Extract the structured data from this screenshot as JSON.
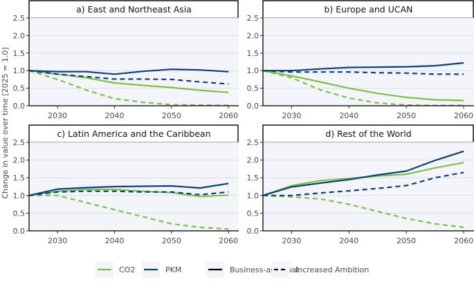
{
  "colors": {
    "co2": "#7cc142",
    "pkm": "#0b3f7f",
    "plot_bg": "#f3f5fa",
    "grid": "#dcdde3",
    "axis": "#222222",
    "text": "#444b55"
  },
  "chart_data": {
    "type": "line",
    "ylabel": "Change in value over time [2025 = 1.0]",
    "xlim": [
      2025,
      2061.8
    ],
    "ylim": [
      0,
      2.5
    ],
    "xticks": [
      2030,
      2040,
      2050,
      2060
    ],
    "yticks": [
      "0.0",
      "0.5",
      "1.0",
      "1.5",
      "2.0",
      "2.5"
    ],
    "grid": true,
    "legend": {
      "placement": "bottom",
      "entries": [
        {
          "label": "CO2",
          "color": "#7cc142",
          "style": "solid"
        },
        {
          "label": "PKM",
          "color": "#0b3f7f",
          "style": "solid"
        },
        {
          "label": "Business-as-Usual",
          "color": "#000000",
          "style": "solid"
        },
        {
          "label": "Increased Ambition",
          "color": "#000000",
          "style": "dashed"
        }
      ]
    },
    "x": [
      2025,
      2030,
      2035,
      2040,
      2045,
      2050,
      2055,
      2060
    ],
    "panels": [
      {
        "title": "a) East and Northeast Asia",
        "series": [
          {
            "metric": "CO2",
            "scenario": "Business-as-Usual",
            "values": [
              1.0,
              0.9,
              0.8,
              0.65,
              0.58,
              0.52,
              0.44,
              0.38
            ]
          },
          {
            "metric": "PKM",
            "scenario": "Business-as-Usual",
            "values": [
              1.0,
              0.97,
              0.97,
              0.9,
              0.98,
              1.04,
              1.02,
              0.97
            ]
          },
          {
            "metric": "CO2",
            "scenario": "Increased Ambition",
            "values": [
              1.0,
              0.75,
              0.45,
              0.2,
              0.1,
              0.03,
              0.02,
              0.01
            ]
          },
          {
            "metric": "PKM",
            "scenario": "Increased Ambition",
            "values": [
              1.0,
              0.9,
              0.83,
              0.76,
              0.76,
              0.75,
              0.68,
              0.62
            ]
          }
        ]
      },
      {
        "title": "b) Europe and UCAN",
        "series": [
          {
            "metric": "CO2",
            "scenario": "Business-as-Usual",
            "values": [
              1.0,
              0.85,
              0.68,
              0.5,
              0.35,
              0.24,
              0.17,
              0.15
            ]
          },
          {
            "metric": "PKM",
            "scenario": "Business-as-Usual",
            "values": [
              1.0,
              1.0,
              1.05,
              1.09,
              1.1,
              1.11,
              1.14,
              1.22
            ]
          },
          {
            "metric": "CO2",
            "scenario": "Increased Ambition",
            "values": [
              1.0,
              0.8,
              0.45,
              0.22,
              0.08,
              0.02,
              0.01,
              0.01
            ]
          },
          {
            "metric": "PKM",
            "scenario": "Increased Ambition",
            "values": [
              1.0,
              0.96,
              0.96,
              0.96,
              0.94,
              0.93,
              0.9,
              0.9
            ]
          }
        ]
      },
      {
        "title": "c) Latin America and the Caribbean",
        "series": [
          {
            "metric": "CO2",
            "scenario": "Business-as-Usual",
            "values": [
              1.0,
              1.12,
              1.17,
              1.17,
              1.12,
              1.08,
              0.97,
              1.01
            ]
          },
          {
            "metric": "PKM",
            "scenario": "Business-as-Usual",
            "values": [
              1.0,
              1.18,
              1.22,
              1.25,
              1.26,
              1.27,
              1.21,
              1.34
            ]
          },
          {
            "metric": "CO2",
            "scenario": "Increased Ambition",
            "values": [
              1.0,
              1.0,
              0.8,
              0.6,
              0.4,
              0.2,
              0.1,
              0.05
            ]
          },
          {
            "metric": "PKM",
            "scenario": "Increased Ambition",
            "values": [
              1.0,
              1.1,
              1.12,
              1.12,
              1.1,
              1.1,
              1.02,
              1.1
            ]
          }
        ]
      },
      {
        "title": "d) Rest of the World",
        "series": [
          {
            "metric": "CO2",
            "scenario": "Business-as-Usual",
            "values": [
              1.0,
              1.28,
              1.42,
              1.48,
              1.55,
              1.6,
              1.78,
              1.93
            ]
          },
          {
            "metric": "PKM",
            "scenario": "Business-as-Usual",
            "values": [
              1.0,
              1.24,
              1.35,
              1.45,
              1.58,
              1.69,
              1.99,
              2.25
            ]
          },
          {
            "metric": "CO2",
            "scenario": "Increased Ambition",
            "values": [
              1.0,
              0.96,
              0.9,
              0.75,
              0.55,
              0.35,
              0.2,
              0.1
            ]
          },
          {
            "metric": "PKM",
            "scenario": "Increased Ambition",
            "values": [
              1.0,
              1.0,
              1.07,
              1.13,
              1.2,
              1.28,
              1.5,
              1.65
            ]
          }
        ]
      }
    ]
  }
}
